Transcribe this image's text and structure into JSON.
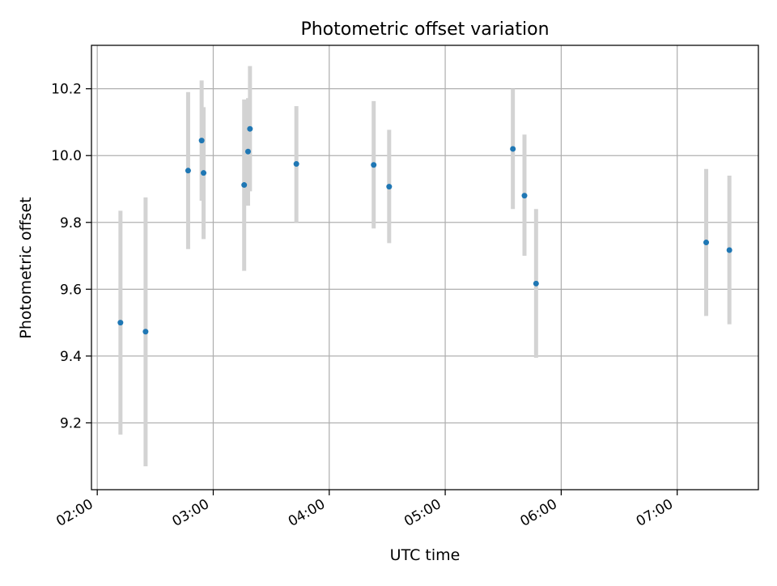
{
  "chart_data": {
    "type": "scatter",
    "title": "Photometric offset variation",
    "xlabel": "UTC time",
    "ylabel": "Photometric offset",
    "x_tick_labels": [
      "02:00",
      "03:00",
      "04:00",
      "05:00",
      "06:00",
      "07:00"
    ],
    "y_tick_labels": [
      "9.2",
      "9.4",
      "9.6",
      "9.8",
      "10.0",
      "10.2"
    ],
    "y_ticks": [
      9.2,
      9.4,
      9.6,
      9.8,
      10.0,
      10.2
    ],
    "x_range_hours": [
      1.95,
      7.7
    ],
    "ylim": [
      9.0,
      10.33
    ],
    "grid": true,
    "legend": false,
    "point_color": "#1f77b4",
    "errorbar_color": "#d3d3d3",
    "points": [
      {
        "time": "02:12",
        "y": 9.5,
        "err_low": 9.165,
        "err_high": 9.835
      },
      {
        "time": "02:25",
        "y": 9.473,
        "err_low": 9.07,
        "err_high": 9.875
      },
      {
        "time": "02:47",
        "y": 9.955,
        "err_low": 9.72,
        "err_high": 10.19
      },
      {
        "time": "02:54",
        "y": 10.045,
        "err_low": 9.865,
        "err_high": 10.225
      },
      {
        "time": "02:55",
        "y": 9.948,
        "err_low": 9.75,
        "err_high": 10.145
      },
      {
        "time": "03:16",
        "y": 9.912,
        "err_low": 9.655,
        "err_high": 10.168
      },
      {
        "time": "03:18",
        "y": 10.012,
        "err_low": 9.85,
        "err_high": 10.172
      },
      {
        "time": "03:19",
        "y": 10.08,
        "err_low": 9.893,
        "err_high": 10.268
      },
      {
        "time": "03:43",
        "y": 9.975,
        "err_low": 9.8,
        "err_high": 10.148
      },
      {
        "time": "04:23",
        "y": 9.972,
        "err_low": 9.782,
        "err_high": 10.163
      },
      {
        "time": "04:31",
        "y": 9.907,
        "err_low": 9.738,
        "err_high": 10.077
      },
      {
        "time": "05:35",
        "y": 10.02,
        "err_low": 9.84,
        "err_high": 10.2
      },
      {
        "time": "05:41",
        "y": 9.88,
        "err_low": 9.7,
        "err_high": 10.063
      },
      {
        "time": "05:47",
        "y": 9.617,
        "err_low": 9.395,
        "err_high": 9.84
      },
      {
        "time": "07:15",
        "y": 9.74,
        "err_low": 9.52,
        "err_high": 9.96
      },
      {
        "time": "07:27",
        "y": 9.717,
        "err_low": 9.495,
        "err_high": 9.94
      }
    ]
  }
}
